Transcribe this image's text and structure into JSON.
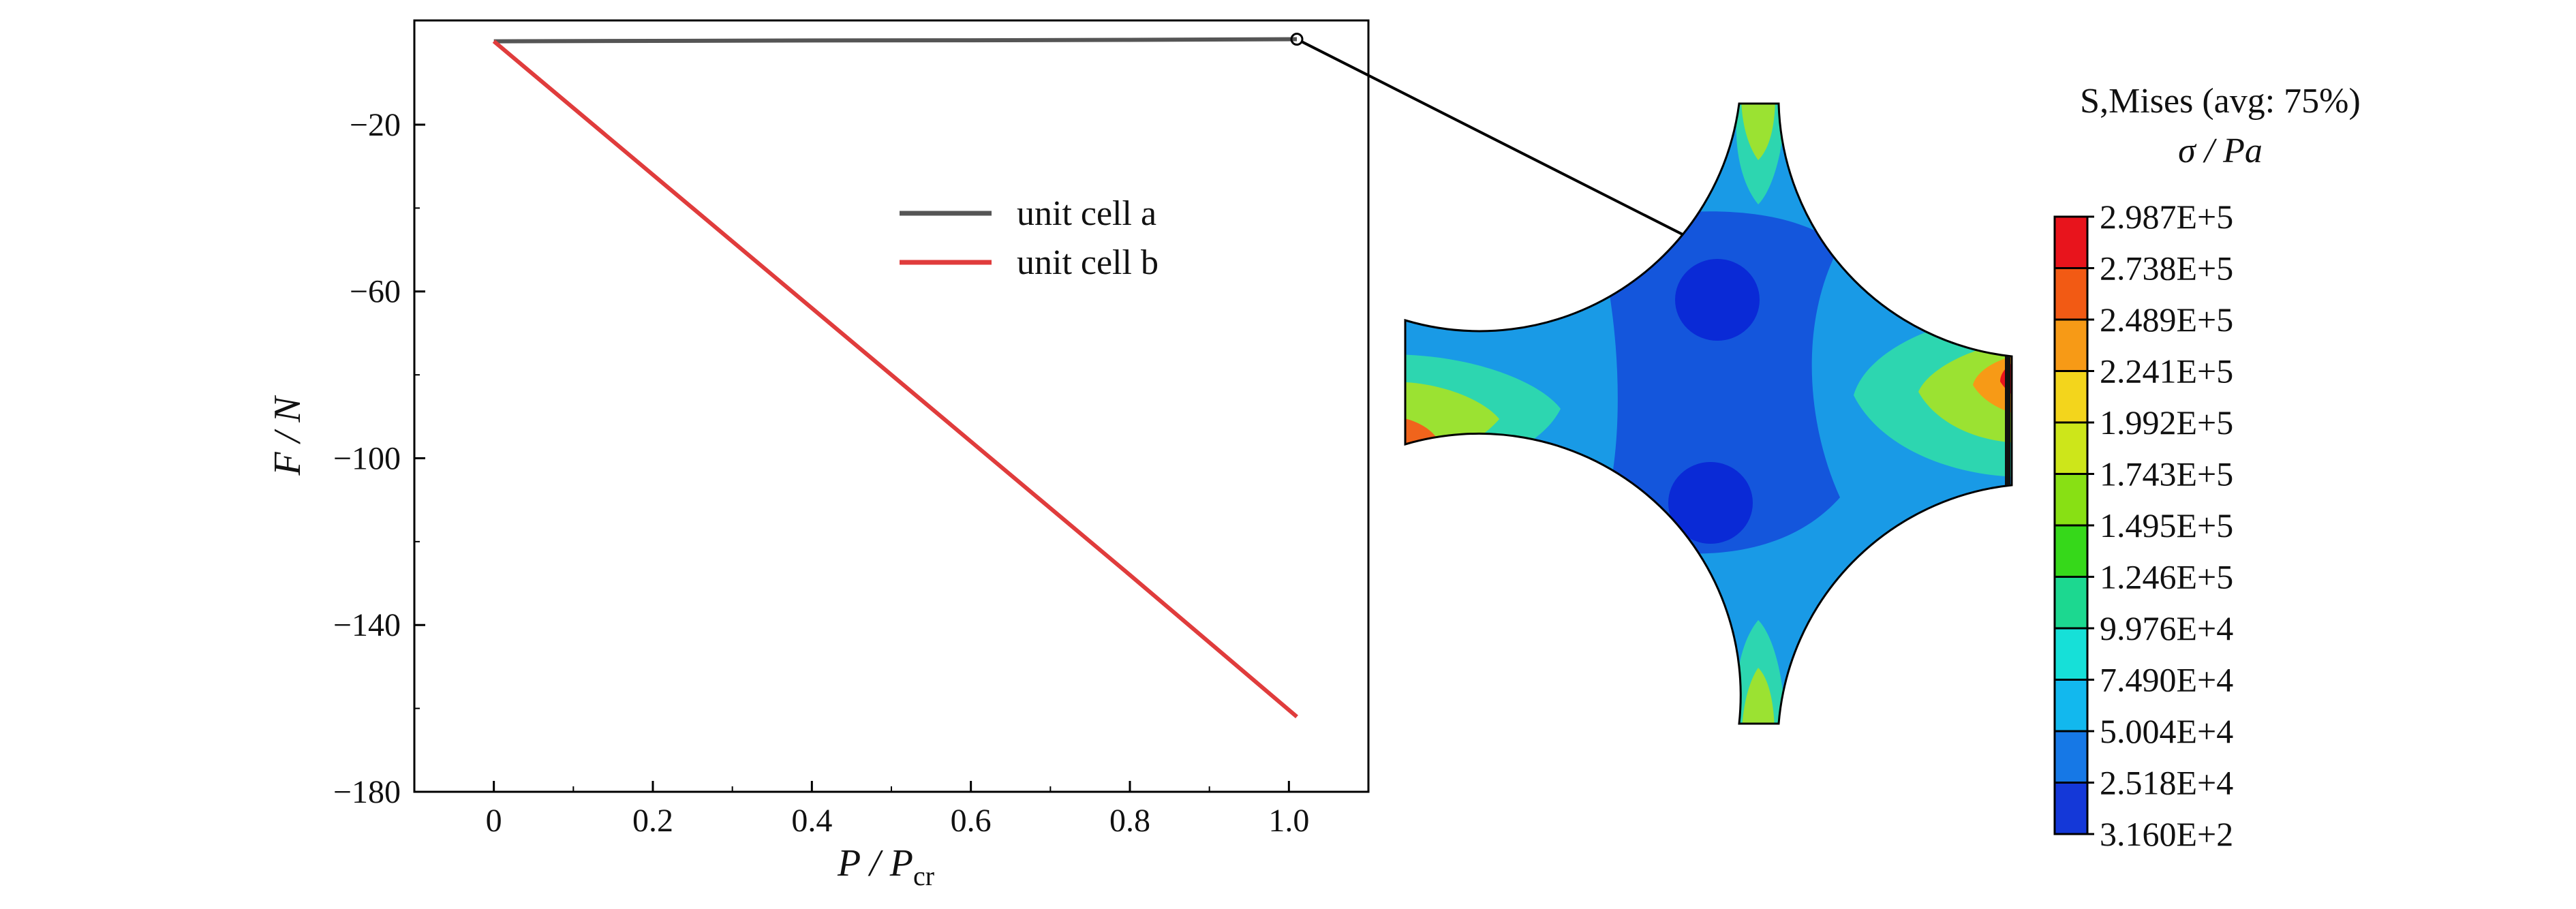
{
  "chart_data": [
    {
      "type": "line",
      "xlabel": "P / P_cr",
      "xlabel_parts": {
        "main": "P / P",
        "sub": "cr"
      },
      "ylabel": "F / N",
      "xlim": [
        -0.1,
        1.1
      ],
      "ylim": [
        -180,
        5
      ],
      "xticks": [
        0,
        0.2,
        0.4,
        0.6,
        0.8,
        1.0
      ],
      "xtick_labels": [
        "0",
        "0.2",
        "0.4",
        "0.6",
        "0.8",
        "1.0"
      ],
      "yticks": [
        -20,
        -60,
        -100,
        -140,
        -180
      ],
      "ytick_labels": [
        "−20",
        "−60",
        "−100",
        "−140",
        "−180"
      ],
      "grid": false,
      "legend_position": "upper-center",
      "series": [
        {
          "name": "unit cell a",
          "color": "#555555",
          "x": [
            0,
            0.2,
            0.4,
            0.6,
            0.8,
            1.01
          ],
          "y": [
            0,
            0.1,
            0.2,
            0.25,
            0.35,
            0.5
          ]
        },
        {
          "name": "unit cell b",
          "color": "#e03c3c",
          "x": [
            0,
            0.2,
            0.4,
            0.6,
            0.8,
            1.01
          ],
          "y": [
            0,
            -32,
            -64,
            -96,
            -128,
            -162
          ]
        }
      ],
      "annotation": {
        "x": 1.01,
        "y": 0.5,
        "marker": "open-circle"
      }
    },
    {
      "type": "heatmap",
      "title": "S,Mises (avg: 75%)",
      "subtitle": "σ / Pa",
      "colorbar_labels": [
        "2.987E+5",
        "2.738E+5",
        "2.489E+5",
        "2.241E+5",
        "1.992E+5",
        "1.743E+5",
        "1.495E+5",
        "1.246E+5",
        "9.976E+4",
        "7.490E+4",
        "5.004E+4",
        "2.518E+4",
        "3.160E+2"
      ],
      "colorbar_colors": [
        "#e8141c",
        "#f25a14",
        "#f79a16",
        "#f3d51c",
        "#cde61a",
        "#88e014",
        "#36d81a",
        "#1cd890",
        "#16e0d8",
        "#12b8ee",
        "#1678e6",
        "#1438d8"
      ],
      "contour_colors": {
        "low": "#0a2ad6",
        "mid_low": "#1456dc",
        "mid": "#199ae6",
        "mid_high": "#2dd6b0",
        "high": "#9be232",
        "peak": "#f0641c"
      }
    }
  ]
}
